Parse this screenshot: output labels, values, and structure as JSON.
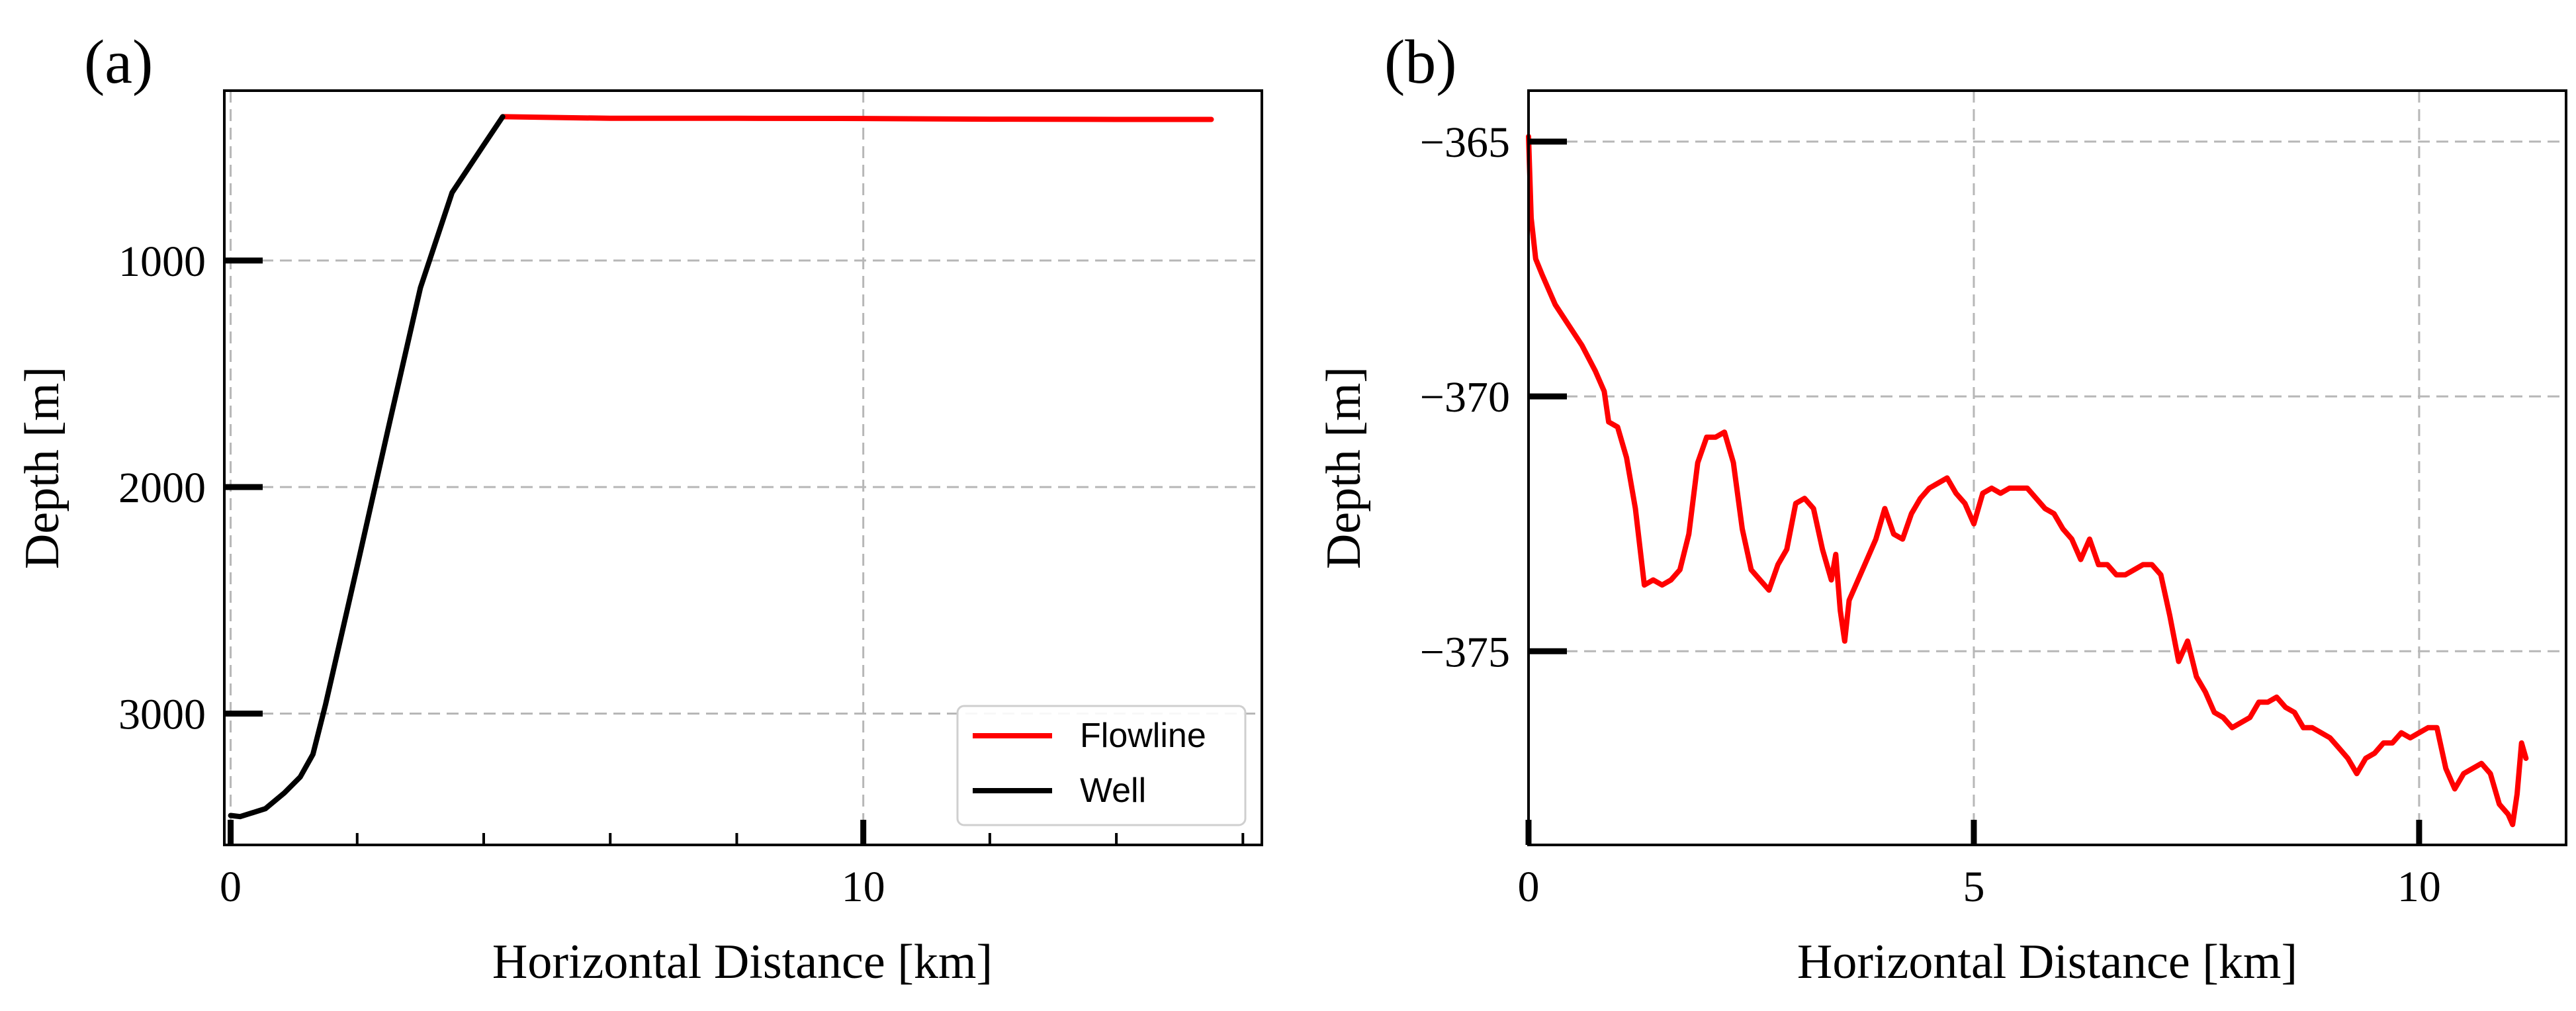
{
  "chart_data": [
    {
      "type": "line",
      "panel_label": "(a)",
      "title": "",
      "xlabel": "Horizontal Distance [km]",
      "ylabel": "Depth [m]",
      "xlim": [
        -0.1,
        16.3
      ],
      "ylim": [
        3580,
        250
      ],
      "y_inverted": true,
      "grid": true,
      "xticks": [
        0,
        10
      ],
      "xtick_labels": [
        "0",
        "10"
      ],
      "xminor_ticks": [
        2,
        4,
        6,
        8,
        12,
        14,
        16
      ],
      "yticks": [
        1000,
        2000,
        3000
      ],
      "ytick_labels": [
        "1000",
        "2000",
        "3000"
      ],
      "legend": {
        "location": "lower-right",
        "entries": [
          {
            "label": "Flowline",
            "color": "#ff0000"
          },
          {
            "label": "Well",
            "color": "#000000"
          }
        ]
      },
      "series": [
        {
          "name": "Flowline",
          "color": "#ff0000",
          "x": [
            4.3,
            6,
            8,
            10,
            12,
            14,
            15.5
          ],
          "y": [
            365,
            372,
            372,
            373,
            376,
            377,
            377
          ]
        },
        {
          "name": "Well",
          "color": "#000000",
          "x": [
            0,
            0.15,
            0.55,
            0.85,
            1.1,
            1.3,
            1.5,
            2,
            2.5,
            3,
            3.5,
            4,
            4.3
          ],
          "y": [
            3450,
            3455,
            3420,
            3350,
            3280,
            3180,
            2960,
            2350,
            1730,
            1120,
            700,
            490,
            365
          ]
        }
      ]
    },
    {
      "type": "line",
      "panel_label": "(b)",
      "title": "",
      "xlabel": "Horizontal Distance [km]",
      "ylabel": "Depth [m]",
      "xlim": [
        0,
        11.65
      ],
      "ylim": [
        -378.8,
        -364.0
      ],
      "y_inverted": false,
      "grid": true,
      "xticks": [
        0,
        5,
        10
      ],
      "xtick_labels": [
        "0",
        "5",
        "10"
      ],
      "yticks": [
        -365,
        -370,
        -375
      ],
      "ytick_labels": [
        "−365",
        "−370",
        "−375"
      ],
      "series": [
        {
          "name": "Flowline",
          "color": "#ff0000",
          "x": [
            0,
            0.03,
            0.08,
            0.15,
            0.3,
            0.45,
            0.6,
            0.75,
            0.85,
            0.9,
            1.0,
            1.1,
            1.2,
            1.3,
            1.4,
            1.5,
            1.6,
            1.7,
            1.8,
            1.9,
            2.0,
            2.1,
            2.2,
            2.3,
            2.4,
            2.5,
            2.6,
            2.7,
            2.8,
            2.9,
            3.0,
            3.1,
            3.2,
            3.3,
            3.4,
            3.45,
            3.5,
            3.55,
            3.6,
            3.7,
            3.8,
            3.9,
            4.0,
            4.1,
            4.2,
            4.3,
            4.4,
            4.5,
            4.6,
            4.7,
            4.8,
            4.9,
            5.0,
            5.1,
            5.2,
            5.3,
            5.4,
            5.5,
            5.6,
            5.7,
            5.8,
            5.9,
            6.0,
            6.1,
            6.2,
            6.3,
            6.4,
            6.5,
            6.6,
            6.7,
            6.8,
            6.9,
            7.0,
            7.1,
            7.2,
            7.3,
            7.4,
            7.5,
            7.6,
            7.7,
            7.8,
            7.9,
            8.0,
            8.1,
            8.2,
            8.3,
            8.4,
            8.5,
            8.6,
            8.7,
            8.8,
            8.9,
            9.0,
            9.1,
            9.2,
            9.3,
            9.4,
            9.5,
            9.6,
            9.7,
            9.8,
            9.9,
            10.0,
            10.1,
            10.2,
            10.3,
            10.4,
            10.5,
            10.6,
            10.7,
            10.8,
            10.9,
            11.0,
            11.05,
            11.1,
            11.15,
            11.2
          ],
          "y": [
            -364.9,
            -366.5,
            -367.3,
            -367.6,
            -368.2,
            -368.6,
            -369.0,
            -369.5,
            -369.9,
            -370.5,
            -370.6,
            -371.2,
            -372.2,
            -373.7,
            -373.6,
            -373.7,
            -373.6,
            -373.4,
            -372.7,
            -371.3,
            -370.8,
            -370.8,
            -370.7,
            -371.3,
            -372.6,
            -373.4,
            -373.6,
            -373.8,
            -373.3,
            -373.0,
            -372.1,
            -372.0,
            -372.2,
            -373.0,
            -373.6,
            -373.1,
            -374.2,
            -374.8,
            -374.0,
            -373.6,
            -373.2,
            -372.8,
            -372.2,
            -372.7,
            -372.8,
            -372.3,
            -372.0,
            -371.8,
            -371.7,
            -371.6,
            -371.9,
            -372.1,
            -372.5,
            -371.9,
            -371.8,
            -371.9,
            -371.8,
            -371.8,
            -371.8,
            -372.0,
            -372.2,
            -372.3,
            -372.6,
            -372.8,
            -373.2,
            -372.8,
            -373.3,
            -373.3,
            -373.5,
            -373.5,
            -373.4,
            -373.3,
            -373.3,
            -373.5,
            -374.3,
            -375.2,
            -374.8,
            -375.5,
            -375.8,
            -376.2,
            -376.3,
            -376.5,
            -376.4,
            -376.3,
            -376.0,
            -376.0,
            -375.9,
            -376.1,
            -376.2,
            -376.5,
            -376.5,
            -376.6,
            -376.7,
            -376.9,
            -377.1,
            -377.4,
            -377.1,
            -377.0,
            -376.8,
            -376.8,
            -376.6,
            -376.7,
            -376.6,
            -376.5,
            -376.5,
            -377.3,
            -377.7,
            -377.4,
            -377.3,
            -377.2,
            -377.4,
            -378.0,
            -378.2,
            -378.4,
            -377.8,
            -376.8,
            -377.1
          ]
        }
      ]
    }
  ]
}
